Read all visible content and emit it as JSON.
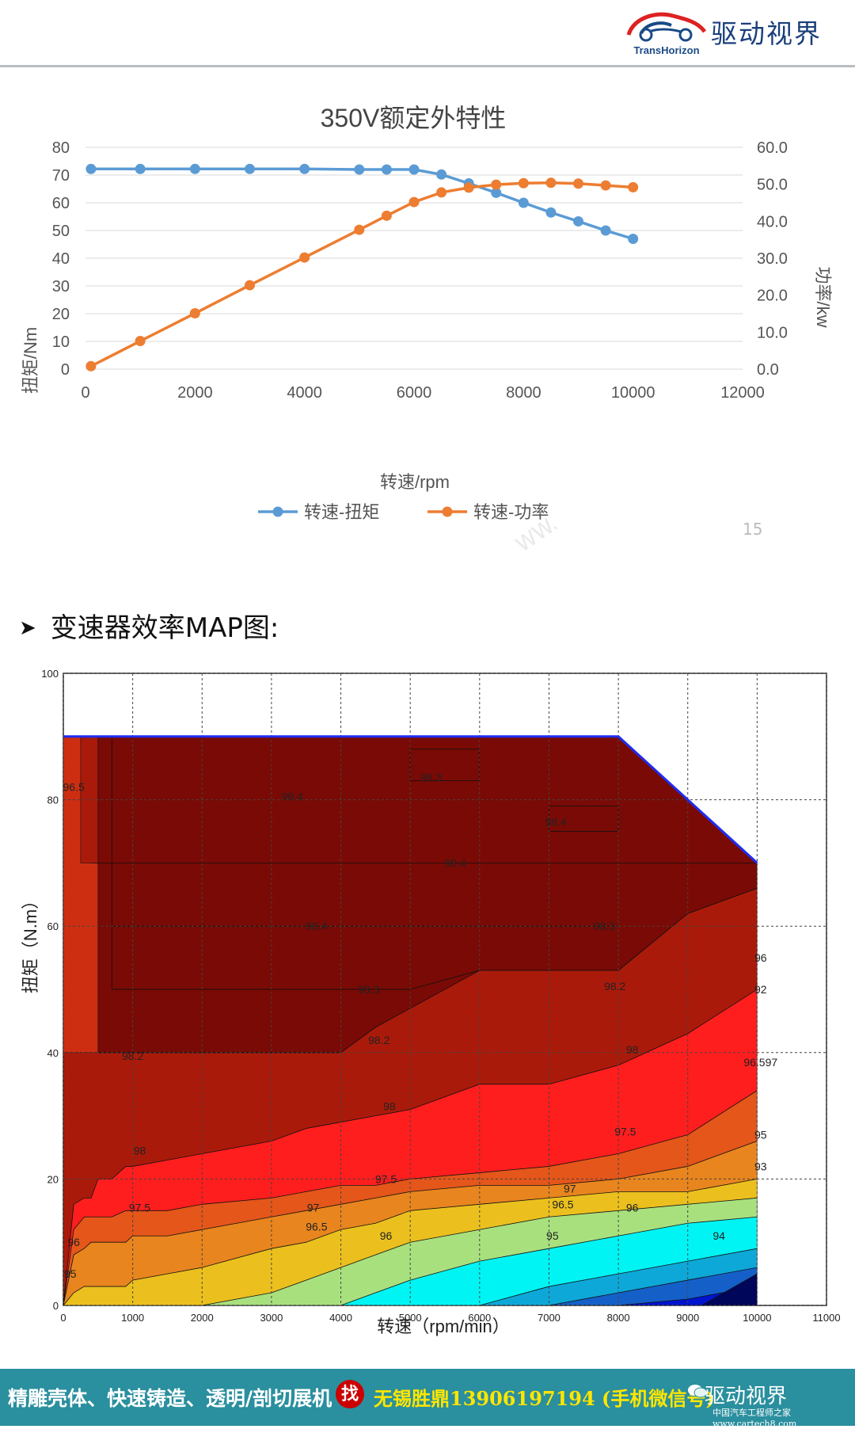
{
  "header": {
    "brand_en": "TransHorizon",
    "brand_cn": "驱动视界"
  },
  "section_heading": "变速器效率MAP图:",
  "stray_text": "15",
  "watermark_diag": "WW.",
  "chart_data": [
    {
      "type": "line",
      "title": "350V额定外特性",
      "xlabel": "转速/rpm",
      "ylabel": "扭矩/Nm",
      "y2label": "功率/kw",
      "xlim": [
        0,
        12000
      ],
      "ylim": [
        0,
        80
      ],
      "y2lim": [
        0,
        60
      ],
      "xticks": [
        "0",
        "2000",
        "4000",
        "6000",
        "8000",
        "10000",
        "12000"
      ],
      "yticks": [
        "0",
        "10",
        "20",
        "30",
        "40",
        "50",
        "60",
        "70",
        "80"
      ],
      "y2ticks": [
        "0.0",
        "10.0",
        "20.0",
        "30.0",
        "40.0",
        "50.0",
        "60.0"
      ],
      "legend_position": "bottom",
      "grid": "horizontal",
      "series": [
        {
          "name": "转速-扭矩",
          "axis": "left",
          "color": "#5b9bd5",
          "x": [
            100,
            1000,
            2000,
            3000,
            4000,
            5000,
            5500,
            6000,
            6500,
            7000,
            7500,
            8000,
            8500,
            9000,
            9500,
            10000
          ],
          "y": [
            72.2,
            72.2,
            72.2,
            72.2,
            72.2,
            72.0,
            72.0,
            72.0,
            70.2,
            67.0,
            63.6,
            60.0,
            56.5,
            53.3,
            50.0,
            47.0
          ]
        },
        {
          "name": "转速-功率",
          "axis": "right",
          "color": "#ed7d31",
          "x": [
            100,
            1000,
            2000,
            3000,
            4000,
            5000,
            5500,
            6000,
            6500,
            7000,
            7500,
            8000,
            8500,
            9000,
            9500,
            10000
          ],
          "y": [
            0.8,
            7.6,
            15.1,
            22.7,
            30.2,
            37.7,
            41.5,
            45.2,
            47.8,
            49.1,
            49.9,
            50.3,
            50.4,
            50.2,
            49.7,
            49.2
          ]
        }
      ]
    },
    {
      "type": "heatmap",
      "xlabel": "转速（rpm/min）",
      "ylabel": "扭矩（N.m）",
      "xlim": [
        0,
        11000
      ],
      "ylim": [
        0,
        100
      ],
      "xticks": [
        "0",
        "1000",
        "2000",
        "3000",
        "4000",
        "5000",
        "6000",
        "7000",
        "8000",
        "9000",
        "10000",
        "11000"
      ],
      "yticks": [
        "0",
        "20",
        "40",
        "60",
        "80",
        "100"
      ],
      "grid": "dashed",
      "envelope": {
        "x": [
          0,
          8000,
          10000,
          10000,
          0
        ],
        "y": [
          90,
          90,
          70,
          0,
          0
        ]
      },
      "colors": {
        "98.4": "#7a0a05",
        "98.2": "#aa1a0a",
        "98": "#cd2e12",
        "97.5": "#ff1e1e",
        "97": "#e4561a",
        "96": "#e8851e",
        "95": "#ebc01e",
        "94": "#a8e07e",
        "93": "#00f4f4",
        "92": "#0ea8d8",
        "91": "#1460c8",
        "90": "#0014d0",
        "89": "#00065a"
      },
      "contour_labels": [
        {
          "x": 3300,
          "y": 80.5,
          "text": "98.4"
        },
        {
          "x": 5300,
          "y": 83.5,
          "text": "98.3"
        },
        {
          "x": 7100,
          "y": 76.5,
          "text": "98.4"
        },
        {
          "x": 5650,
          "y": 70,
          "text": "98.4"
        },
        {
          "x": 3650,
          "y": 60,
          "text": "98.4"
        },
        {
          "x": 7800,
          "y": 60,
          "text": "98.3"
        },
        {
          "x": 4400,
          "y": 50,
          "text": "98.3"
        },
        {
          "x": 7950,
          "y": 50.5,
          "text": "98.2"
        },
        {
          "x": 4550,
          "y": 42,
          "text": "98.2"
        },
        {
          "x": 1000,
          "y": 39.5,
          "text": "98.2"
        },
        {
          "x": 8200,
          "y": 40.5,
          "text": "98"
        },
        {
          "x": 4700,
          "y": 31.5,
          "text": "98"
        },
        {
          "x": 1100,
          "y": 24.5,
          "text": "98"
        },
        {
          "x": 8100,
          "y": 27.5,
          "text": "97.5"
        },
        {
          "x": 4650,
          "y": 20,
          "text": "97.5"
        },
        {
          "x": 1100,
          "y": 15.5,
          "text": "97.5"
        },
        {
          "x": 7300,
          "y": 18.5,
          "text": "97"
        },
        {
          "x": 3600,
          "y": 15.5,
          "text": "97"
        },
        {
          "x": 7200,
          "y": 16,
          "text": "96.5"
        },
        {
          "x": 3650,
          "y": 12.5,
          "text": "96.5"
        },
        {
          "x": 8200,
          "y": 15.5,
          "text": "96"
        },
        {
          "x": 4650,
          "y": 11,
          "text": "96"
        },
        {
          "x": 7050,
          "y": 11,
          "text": "95"
        },
        {
          "x": 9450,
          "y": 11,
          "text": "94"
        },
        {
          "x": 10050,
          "y": 55,
          "text": "96"
        },
        {
          "x": 10050,
          "y": 50,
          "text": "92"
        },
        {
          "x": 10050,
          "y": 38.5,
          "text": "96.597"
        },
        {
          "x": 10050,
          "y": 27,
          "text": "95"
        },
        {
          "x": 10050,
          "y": 22,
          "text": "93"
        },
        {
          "x": 150,
          "y": 82,
          "text": "96.5"
        },
        {
          "x": 150,
          "y": 10,
          "text": "96"
        },
        {
          "x": 100,
          "y": 5,
          "text": "95"
        }
      ]
    }
  ],
  "footer": {
    "ad_text_1": "精雕壳体、快速铸造、透明/剖切展机",
    "ad_badge": "找",
    "ad_text_2": "无锡胜鼎13906197194 (手机微信号)",
    "brand": "驱动视界",
    "watermark": "中国汽车工程师之家 www.cartech8.com"
  }
}
